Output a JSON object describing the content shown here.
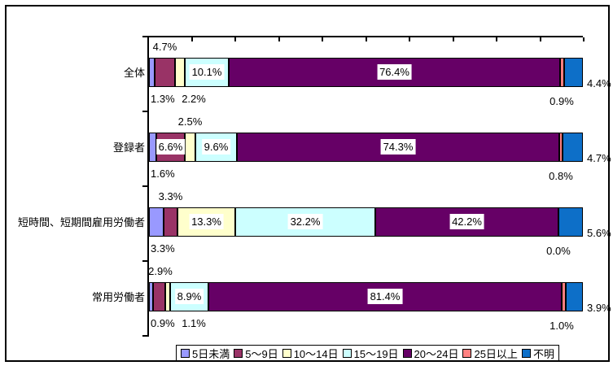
{
  "chart_data": {
    "type": "bar",
    "orientation": "horizontal",
    "stacked_100pct": true,
    "unit": "%",
    "title": "",
    "categories": [
      "全体",
      "登録者",
      "短時間、短期間雇用労働者",
      "常用労働者"
    ],
    "series": [
      {
        "name": "5日未満",
        "color": "#9999FF",
        "values": [
          1.3,
          1.6,
          3.3,
          0.9
        ]
      },
      {
        "name": "5～9日",
        "color": "#993366",
        "values": [
          4.7,
          6.6,
          3.3,
          2.9
        ]
      },
      {
        "name": "10～14日",
        "color": "#FFFFCC",
        "values": [
          2.2,
          2.5,
          13.3,
          1.1
        ]
      },
      {
        "name": "15～19日",
        "color": "#CCFFFF",
        "values": [
          10.1,
          9.6,
          32.2,
          8.9
        ]
      },
      {
        "name": "20～24日",
        "color": "#660066",
        "values": [
          76.4,
          74.3,
          42.2,
          81.4
        ]
      },
      {
        "name": "25日以上",
        "color": "#FF8080",
        "values": [
          0.9,
          0.8,
          0.0,
          1.0
        ]
      },
      {
        "name": "不明",
        "color": "#0D6FC8",
        "values": [
          4.4,
          4.7,
          5.6,
          3.9
        ]
      }
    ],
    "data_labels": {
      "format": "0.0%",
      "placement_by_row": [
        [
          "below-start",
          "above",
          "below",
          "inside",
          "inside",
          "below-end",
          "right-out"
        ],
        [
          "below-start",
          "inside",
          "above",
          "inside",
          "inside",
          "below-end",
          "right-out"
        ],
        [
          "below-start",
          "above",
          "inside",
          "inside",
          "inside",
          "below-end",
          "right-out"
        ],
        [
          "below-start",
          "above",
          "below",
          "inside",
          "inside",
          "below-end",
          "right-out"
        ]
      ]
    },
    "axis": {
      "value_min": 0,
      "value_max": 100,
      "major_tick_step_pct": 10,
      "tick_labels_visible": false,
      "value_axis_position": "top"
    },
    "legend": {
      "position": "bottom",
      "entries": [
        "5日未満",
        "5～9日",
        "10～14日",
        "15～19日",
        "20～24日",
        "25日以上",
        "不明"
      ]
    },
    "colors": {
      "background": "#FFFFFF",
      "border": "#000000",
      "text": "#000000",
      "label_box_fill": "#FFFFFF"
    }
  }
}
